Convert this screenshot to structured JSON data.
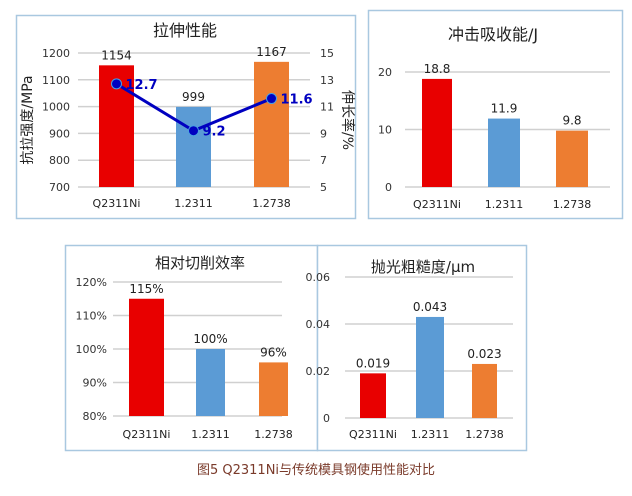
{
  "caption": "图5 Q2311Ni与传统模具钢使用性能对比",
  "colors": {
    "Q2311Ni": "#e80000",
    "1.2311": "#5b9bd5",
    "1.2738": "#ed7d31",
    "line": "#0000c0",
    "frame": "#a9c8e0",
    "grid": "#d0d0d0"
  },
  "chart_data": [
    {
      "type": "bar+line",
      "title": "拉伸性能",
      "categories": [
        "Q2311Ni",
        "1.2311",
        "1.2738"
      ],
      "values": [
        1154,
        999,
        1167
      ],
      "labels": [
        "1154",
        "999",
        "1167"
      ],
      "ylabel": "抗拉强度/MPa",
      "ylim": [
        700,
        1200
      ],
      "yticks": [
        "700",
        "800",
        "900",
        "1000",
        "1100",
        "1200"
      ],
      "line": {
        "values": [
          12.7,
          9.2,
          11.6
        ],
        "labels": [
          "12.7",
          "9.2",
          "11.6"
        ]
      },
      "y2label": "伸长率/%",
      "y2lim": [
        5,
        15
      ],
      "y2ticks": [
        "5",
        "7",
        "9",
        "11",
        "13",
        "15"
      ],
      "grid": true
    },
    {
      "type": "bar",
      "title": "冲击吸收能/J",
      "categories": [
        "Q2311Ni",
        "1.2311",
        "1.2738"
      ],
      "values": [
        18.8,
        11.9,
        9.8
      ],
      "labels": [
        "18.8",
        "11.9",
        "9.8"
      ],
      "ylim": [
        0,
        20
      ],
      "yticks": [
        "0",
        "10",
        "20"
      ],
      "grid": true
    },
    {
      "type": "bar",
      "title": "相对切削效率",
      "categories": [
        "Q2311Ni",
        "1.2311",
        "1.2738"
      ],
      "values": [
        115,
        100,
        96
      ],
      "labels": [
        "115%",
        "100%",
        "96%"
      ],
      "ylim": [
        80,
        120
      ],
      "yticks": [
        "80%",
        "90%",
        "100%",
        "110%",
        "120%"
      ],
      "grid": true
    },
    {
      "type": "bar",
      "title": "抛光粗糙度/μm",
      "categories": [
        "Q2311Ni",
        "1.2311",
        "1.2738"
      ],
      "values": [
        0.019,
        0.043,
        0.023
      ],
      "labels": [
        "0.019",
        "0.043",
        "0.023"
      ],
      "ylim": [
        0,
        0.06
      ],
      "yticks": [
        "0",
        "0.02",
        "0.04",
        "0.06"
      ],
      "grid": true
    }
  ]
}
